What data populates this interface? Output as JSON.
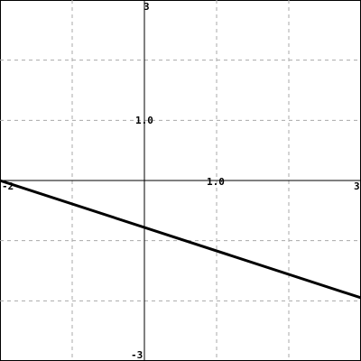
{
  "chart_data": {
    "type": "line",
    "title": "",
    "xlabel": "",
    "ylabel": "",
    "xlim": [
      -2,
      3
    ],
    "ylim": [
      -3,
      3
    ],
    "grid": true,
    "grid_x": [
      -1,
      0,
      1,
      2
    ],
    "grid_y": [
      -2,
      -1,
      0,
      1,
      2
    ],
    "tick_labels": {
      "x_min": "-2",
      "x_max": "3",
      "x_unit": "1.0",
      "y_max": "3",
      "y_min": "-3",
      "y_unit": "1.0"
    },
    "series": [
      {
        "color": "#000000",
        "x": [
          -2,
          3
        ],
        "y": [
          0,
          -1.95
        ]
      }
    ]
  }
}
